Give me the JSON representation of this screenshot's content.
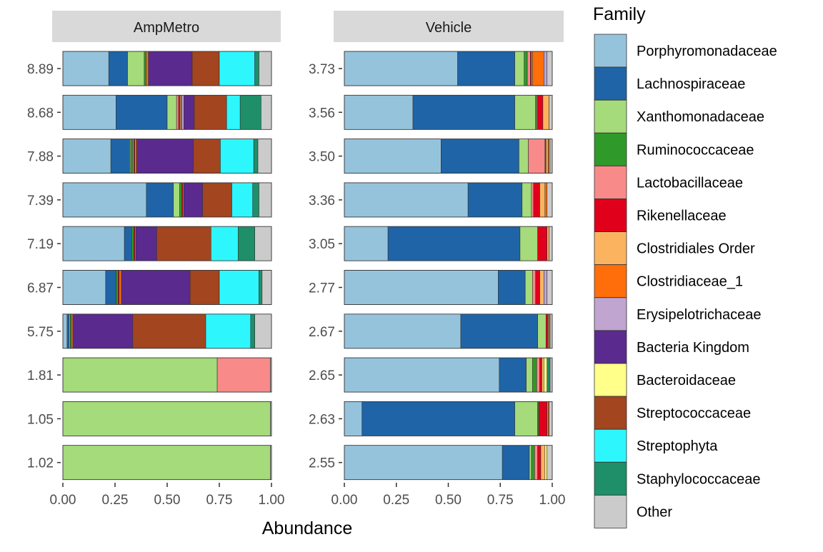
{
  "chart_data": {
    "type": "bar",
    "orientation": "horizontal",
    "stacked": true,
    "xlabel": "Abundance",
    "ylabel": "",
    "xlim": [
      0,
      1
    ],
    "x_ticks": [
      "0.00",
      "0.25",
      "0.50",
      "0.75",
      "1.00"
    ],
    "grid": false,
    "legend_position": "right",
    "legend_title": "Family",
    "families": [
      {
        "name": "Porphyromonadaceae",
        "color": "#96c3dc"
      },
      {
        "name": "Lachnospiraceae",
        "color": "#1f64a6"
      },
      {
        "name": "Xanthomonadaceae",
        "color": "#a5db7b"
      },
      {
        "name": "Ruminococcaceae",
        "color": "#2f9a29"
      },
      {
        "name": "Lactobacillaceae",
        "color": "#f88a89"
      },
      {
        "name": "Rikenellaceae",
        "color": "#e0001c"
      },
      {
        "name": "Clostridiales Order",
        "color": "#fbb35f"
      },
      {
        "name": "Clostridiaceae_1",
        "color": "#ff6e0a"
      },
      {
        "name": "Erysipelotrichaceae",
        "color": "#bfa5cf"
      },
      {
        "name": "Bacteria Kingdom",
        "color": "#5a2a8f"
      },
      {
        "name": "Bacteroidaceae",
        "color": "#ffff89"
      },
      {
        "name": "Streptococcaceae",
        "color": "#a3451f"
      },
      {
        "name": "Streptophyta",
        "color": "#2ef6fd"
      },
      {
        "name": "Staphylococcaceae",
        "color": "#1e8f68"
      },
      {
        "name": "Other",
        "color": "#cbcbcb"
      }
    ],
    "panels": [
      {
        "title": "AmpMetro",
        "bars": [
          {
            "label": "8.89",
            "values": [
              0.22,
              0.09,
              0.08,
              0.01,
              0.0,
              0.0,
              0.0,
              0.01,
              0.0,
              0.21,
              0.0,
              0.13,
              0.17,
              0.02,
              0.06
            ]
          },
          {
            "label": "8.68",
            "values": [
              0.255,
              0.245,
              0.045,
              0.0,
              0.01,
              0.005,
              0.005,
              0.005,
              0.01,
              0.05,
              0.0,
              0.155,
              0.065,
              0.1,
              0.05
            ]
          },
          {
            "label": "7.88",
            "values": [
              0.23,
              0.09,
              0.005,
              0.01,
              0.005,
              0.005,
              0.005,
              0.005,
              0.0,
              0.27,
              0.0,
              0.13,
              0.16,
              0.02,
              0.065
            ]
          },
          {
            "label": "7.39",
            "values": [
              0.4,
              0.13,
              0.03,
              0.01,
              0.0,
              0.005,
              0.0,
              0.005,
              0.0,
              0.09,
              0.0,
              0.14,
              0.1,
              0.03,
              0.06
            ]
          },
          {
            "label": "7.19",
            "values": [
              0.295,
              0.035,
              0.0,
              0.01,
              0.0,
              0.005,
              0.0,
              0.005,
              0.0,
              0.1,
              0.0,
              0.26,
              0.13,
              0.08,
              0.08
            ]
          },
          {
            "label": "6.87",
            "values": [
              0.205,
              0.05,
              0.0,
              0.01,
              0.0,
              0.005,
              0.0,
              0.01,
              0.0,
              0.33,
              0.0,
              0.14,
              0.19,
              0.015,
              0.045
            ]
          },
          {
            "label": "5.75",
            "values": [
              0.02,
              0.01,
              0.005,
              0.005,
              0.005,
              0.0,
              0.0,
              0.005,
              0.0,
              0.285,
              0.0,
              0.35,
              0.215,
              0.02,
              0.08
            ]
          },
          {
            "label": "1.81",
            "values": [
              0.0,
              0.0,
              0.74,
              0.0,
              0.255,
              0.0,
              0.0,
              0.0,
              0.0,
              0.0,
              0.0,
              0.0,
              0.0,
              0.0,
              0.005
            ]
          },
          {
            "label": "1.05",
            "values": [
              0.0,
              0.0,
              0.995,
              0.0,
              0.0,
              0.0,
              0.0,
              0.0,
              0.0,
              0.0,
              0.0,
              0.0,
              0.0,
              0.0,
              0.005
            ]
          },
          {
            "label": "1.02",
            "values": [
              0.0,
              0.0,
              0.995,
              0.0,
              0.0,
              0.0,
              0.0,
              0.0,
              0.0,
              0.0,
              0.0,
              0.0,
              0.0,
              0.0,
              0.005
            ]
          }
        ]
      },
      {
        "title": "Vehicle",
        "bars": [
          {
            "label": "3.73",
            "values": [
              0.545,
              0.275,
              0.045,
              0.015,
              0.015,
              0.005,
              0.005,
              0.055,
              0.015,
              0.0,
              0.0,
              0.0,
              0.0,
              0.0,
              0.025
            ]
          },
          {
            "label": "3.56",
            "values": [
              0.33,
              0.49,
              0.1,
              0.005,
              0.005,
              0.025,
              0.03,
              0.0,
              0.0,
              0.0,
              0.0,
              0.0,
              0.0,
              0.0,
              0.015
            ]
          },
          {
            "label": "3.50",
            "values": [
              0.465,
              0.375,
              0.045,
              0.0,
              0.08,
              0.005,
              0.01,
              0.005,
              0.0,
              0.0,
              0.005,
              0.0,
              0.0,
              0.0,
              0.01
            ]
          },
          {
            "label": "3.36",
            "values": [
              0.595,
              0.26,
              0.045,
              0.0,
              0.01,
              0.03,
              0.025,
              0.01,
              0.0,
              0.0,
              0.0,
              0.0,
              0.0,
              0.0,
              0.025
            ]
          },
          {
            "label": "3.05",
            "values": [
              0.21,
              0.635,
              0.085,
              0.0,
              0.0,
              0.045,
              0.01,
              0.0,
              0.0,
              0.0,
              0.0,
              0.0,
              0.0,
              0.0,
              0.015
            ]
          },
          {
            "label": "2.77",
            "values": [
              0.74,
              0.13,
              0.035,
              0.0,
              0.015,
              0.02,
              0.02,
              0.0,
              0.015,
              0.0,
              0.0,
              0.0,
              0.0,
              0.0,
              0.025
            ]
          },
          {
            "label": "2.67",
            "values": [
              0.56,
              0.37,
              0.04,
              0.0,
              0.0,
              0.01,
              0.005,
              0.005,
              0.0,
              0.0,
              0.0,
              0.0,
              0.0,
              0.0,
              0.01
            ]
          },
          {
            "label": "2.65",
            "values": [
              0.745,
              0.13,
              0.03,
              0.02,
              0.015,
              0.01,
              0.01,
              0.0,
              0.0,
              0.0,
              0.015,
              0.0,
              0.0,
              0.015,
              0.01
            ]
          },
          {
            "label": "2.63",
            "values": [
              0.085,
              0.735,
              0.11,
              0.005,
              0.0,
              0.04,
              0.005,
              0.005,
              0.0,
              0.0,
              0.0,
              0.0,
              0.0,
              0.0,
              0.015
            ]
          },
          {
            "label": "2.55",
            "values": [
              0.76,
              0.13,
              0.01,
              0.015,
              0.015,
              0.015,
              0.02,
              0.0,
              0.0,
              0.0,
              0.01,
              0.0,
              0.0,
              0.0,
              0.025
            ]
          }
        ]
      }
    ]
  }
}
